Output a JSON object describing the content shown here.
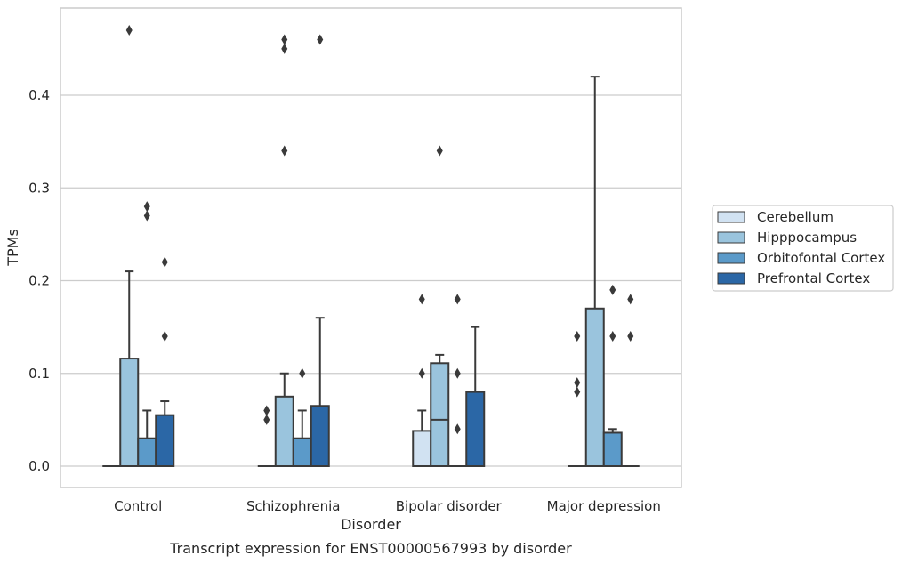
{
  "chart_data": {
    "type": "box",
    "title": "",
    "caption": "Transcript expression for ENST00000567993 by disorder",
    "xlabel": "Disorder",
    "ylabel": "TPMs",
    "ylim": [
      -0.023,
      0.495
    ],
    "yticks": [
      0.0,
      0.1,
      0.2,
      0.3,
      0.4
    ],
    "ytick_labels": [
      "0.0",
      "0.1",
      "0.2",
      "0.3",
      "0.4"
    ],
    "grid": "horizontal",
    "legend_position": "right",
    "categories": [
      "Control",
      "Schizophrenia",
      "Bipolar disorder",
      "Major depression"
    ],
    "series": [
      {
        "name": "Cerebellum",
        "color": "#d1e2f2",
        "boxes": [
          {
            "q1": 0,
            "median": 0,
            "q3": 0,
            "whisker_low": 0,
            "whisker_high": 0,
            "outliers": []
          },
          {
            "q1": 0,
            "median": 0,
            "q3": 0,
            "whisker_low": 0,
            "whisker_high": 0,
            "outliers": [
              0.05,
              0.06
            ]
          },
          {
            "q1": 0,
            "median": 0,
            "q3": 0.038,
            "whisker_low": 0,
            "whisker_high": 0.06,
            "outliers": [
              0.1,
              0.18
            ]
          },
          {
            "q1": 0,
            "median": 0,
            "q3": 0,
            "whisker_low": 0,
            "whisker_high": 0,
            "outliers": [
              0.08,
              0.09,
              0.14
            ]
          }
        ]
      },
      {
        "name": "Hipppocampus",
        "color": "#9ac4dd",
        "boxes": [
          {
            "q1": 0,
            "median": 0,
            "q3": 0.116,
            "whisker_low": 0,
            "whisker_high": 0.21,
            "outliers": [
              0.47
            ]
          },
          {
            "q1": 0,
            "median": 0,
            "q3": 0.075,
            "whisker_low": 0,
            "whisker_high": 0.1,
            "outliers": [
              0.34,
              0.45,
              0.46
            ]
          },
          {
            "q1": 0,
            "median": 0.05,
            "q3": 0.111,
            "whisker_low": 0,
            "whisker_high": 0.12,
            "outliers": [
              0.34
            ]
          },
          {
            "q1": 0,
            "median": 0,
            "q3": 0.17,
            "whisker_low": 0,
            "whisker_high": 0.42,
            "outliers": []
          }
        ]
      },
      {
        "name": "Orbitofontal Cortex",
        "color": "#5b9ac9",
        "boxes": [
          {
            "q1": 0,
            "median": 0,
            "q3": 0.03,
            "whisker_low": 0,
            "whisker_high": 0.06,
            "outliers": [
              0.27,
              0.28
            ]
          },
          {
            "q1": 0,
            "median": 0,
            "q3": 0.03,
            "whisker_low": 0,
            "whisker_high": 0.06,
            "outliers": [
              0.1
            ]
          },
          {
            "q1": 0,
            "median": 0,
            "q3": 0,
            "whisker_low": 0,
            "whisker_high": 0,
            "outliers": [
              0.04,
              0.1,
              0.18
            ]
          },
          {
            "q1": 0,
            "median": 0,
            "q3": 0.036,
            "whisker_low": 0,
            "whisker_high": 0.04,
            "outliers": [
              0.14,
              0.19
            ]
          }
        ]
      },
      {
        "name": "Prefrontal Cortex",
        "color": "#2b67a6",
        "boxes": [
          {
            "q1": 0,
            "median": 0,
            "q3": 0.055,
            "whisker_low": 0,
            "whisker_high": 0.07,
            "outliers": [
              0.14,
              0.22
            ]
          },
          {
            "q1": 0,
            "median": 0,
            "q3": 0.065,
            "whisker_low": 0,
            "whisker_high": 0.16,
            "outliers": [
              0.46
            ]
          },
          {
            "q1": 0,
            "median": 0,
            "q3": 0.08,
            "whisker_low": 0,
            "whisker_high": 0.15,
            "outliers": []
          },
          {
            "q1": 0,
            "median": 0,
            "q3": 0,
            "whisker_low": 0,
            "whisker_high": 0,
            "outliers": [
              0.14,
              0.18
            ]
          }
        ]
      }
    ]
  }
}
